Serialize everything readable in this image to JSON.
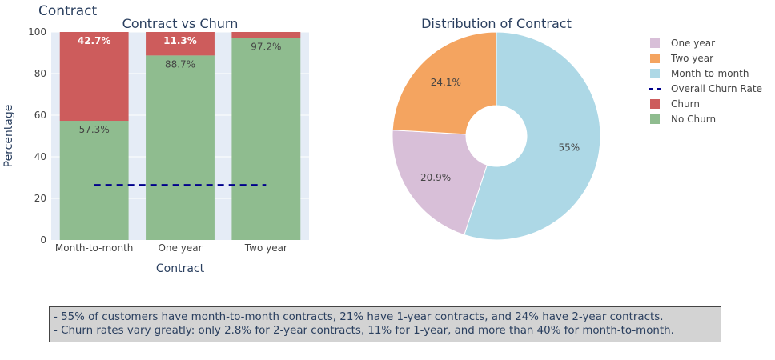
{
  "title": "Contract",
  "colors": {
    "churn": "#cd5c5c",
    "no_churn": "#8fbc8f",
    "overall_line": "#00008b",
    "plot_bg": "#e5ecf6",
    "one_year": "#d8bfd8",
    "two_year": "#f4a460",
    "month_to_month": "#add8e6"
  },
  "chart_data": [
    {
      "type": "bar",
      "stacked": true,
      "title": "Contract vs Churn",
      "xlabel": "Contract",
      "ylabel": "Percentage",
      "ylim": [
        0,
        100
      ],
      "yticks": [
        0,
        20,
        40,
        60,
        80,
        100
      ],
      "categories": [
        "Month-to-month",
        "One year",
        "Two year"
      ],
      "series": [
        {
          "name": "No Churn",
          "values": [
            57.3,
            88.7,
            97.2
          ],
          "labels": [
            "57.3%",
            "88.7%",
            "97.2%"
          ]
        },
        {
          "name": "Churn",
          "values": [
            42.7,
            11.3,
            2.8
          ],
          "labels": [
            "42.7%",
            "11.3%",
            ""
          ]
        }
      ],
      "overall_churn_rate": 26.5,
      "grid": true
    },
    {
      "type": "pie",
      "hole": true,
      "title": "Distribution of Contract",
      "labels": [
        "Month-to-month",
        "One year",
        "Two year"
      ],
      "values": [
        55.0,
        20.9,
        24.1
      ],
      "value_labels": [
        "55%",
        "20.9%",
        "24.1%"
      ]
    }
  ],
  "legend": {
    "position": "top-right",
    "items": [
      {
        "label": "One year",
        "kind": "box",
        "color": "#d8bfd8"
      },
      {
        "label": "Two year",
        "kind": "box",
        "color": "#f4a460"
      },
      {
        "label": "Month-to-month",
        "kind": "box",
        "color": "#add8e6"
      },
      {
        "label": "Overall Churn Rate",
        "kind": "dash",
        "color": "#00008b"
      },
      {
        "label": "Churn",
        "kind": "box",
        "color": "#cd5c5c"
      },
      {
        "label": "No Churn",
        "kind": "box",
        "color": "#8fbc8f"
      }
    ]
  },
  "summary": {
    "line1": "- 55% of customers have month-to-month contracts, 21% have 1-year contracts, and 24% have 2-year contracts.",
    "line2": "- Churn rates vary greatly: only 2.8% for 2-year contracts, 11% for 1-year, and more than 40% for month-to-month."
  }
}
